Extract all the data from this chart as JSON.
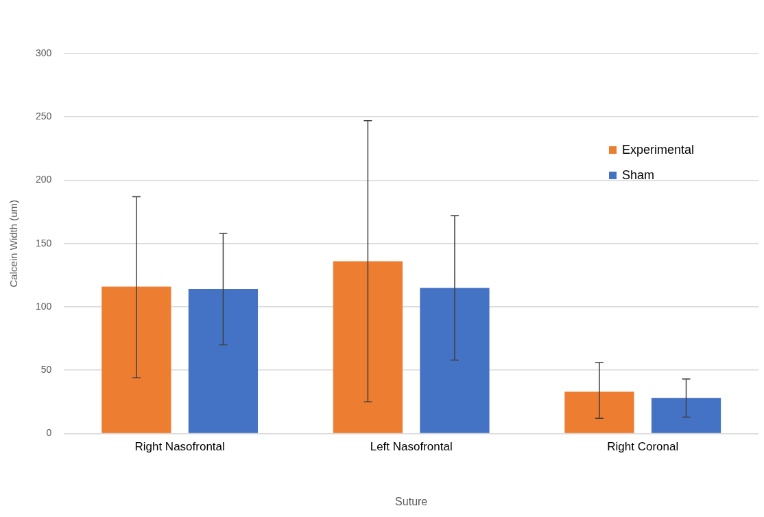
{
  "chart_data": {
    "type": "bar",
    "xlabel": "Suture",
    "ylabel": "Calcein Width (um)",
    "categories": [
      "Right Nasofrontal",
      "Left Nasofrontal",
      "Right Coronal"
    ],
    "series": [
      {
        "name": "Experimental",
        "color": "#ed7d31",
        "values": [
          116,
          136,
          33
        ],
        "errors": [
          [
            44,
            187
          ],
          [
            25,
            247
          ],
          [
            12,
            56
          ]
        ]
      },
      {
        "name": "Sham",
        "color": "#4472c4",
        "values": [
          114,
          115,
          28
        ],
        "errors": [
          [
            70,
            158
          ],
          [
            58,
            172
          ],
          [
            13,
            43
          ]
        ]
      }
    ],
    "ylim": [
      0,
      300
    ],
    "yticks": [
      0,
      50,
      100,
      150,
      200,
      250,
      300
    ],
    "grid": "y",
    "legend": "top right"
  }
}
